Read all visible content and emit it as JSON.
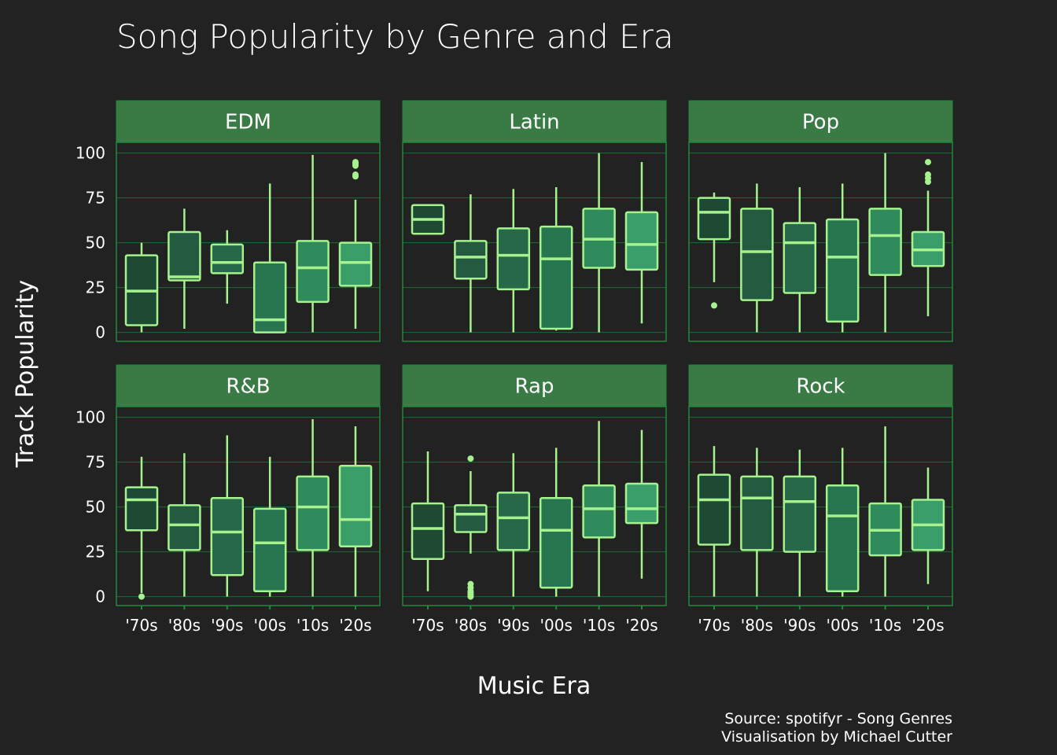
{
  "chart_data": {
    "type": "boxplot",
    "title": "Song Popularity by Genre and Era",
    "xlabel": "Music Era",
    "ylabel": "Track Popularity",
    "caption_line1": "Source: spotifyr - Song Genres",
    "caption_line2": "Visualisation by Michael Cutter",
    "categories": [
      "'70s",
      "'80s",
      "'90s",
      "'00s",
      "'10s",
      "'20s"
    ],
    "y_ticks": [
      0,
      25,
      50,
      75,
      100
    ],
    "ylim": [
      -5,
      106
    ],
    "colors": {
      "background": "#222222",
      "strip": "#3a7a44",
      "frame": "#1f8a3a",
      "grid": "#1f6a33",
      "line": "#a6f28e",
      "fills": [
        "#1e4a33",
        "#245a40",
        "#266848",
        "#28764f",
        "#2f8a5c",
        "#3a9e6b"
      ]
    },
    "panels": [
      {
        "genre": "EDM",
        "boxes": [
          {
            "era": "'70s",
            "min": 0,
            "q1": 4,
            "median": 23,
            "q3": 43,
            "max": 50,
            "outliers": []
          },
          {
            "era": "'80s",
            "min": 2,
            "q1": 29,
            "median": 31,
            "q3": 56,
            "max": 69,
            "outliers": []
          },
          {
            "era": "'90s",
            "min": 16,
            "q1": 33,
            "median": 39,
            "q3": 49,
            "max": 57,
            "outliers": []
          },
          {
            "era": "'00s",
            "min": 0,
            "q1": 0,
            "median": 7,
            "q3": 39,
            "max": 83,
            "outliers": []
          },
          {
            "era": "'10s",
            "min": 0,
            "q1": 17,
            "median": 36,
            "q3": 51,
            "max": 99,
            "outliers": []
          },
          {
            "era": "'20s",
            "min": 2,
            "q1": 26,
            "median": 39,
            "q3": 50,
            "max": 74,
            "outliers": [
              87,
              88,
              93,
              94,
              95
            ]
          }
        ]
      },
      {
        "genre": "Latin",
        "boxes": [
          {
            "era": "'70s",
            "min": 55,
            "q1": 55,
            "median": 63,
            "q3": 71,
            "max": 71,
            "outliers": []
          },
          {
            "era": "'80s",
            "min": 0,
            "q1": 30,
            "median": 42,
            "q3": 51,
            "max": 77,
            "outliers": []
          },
          {
            "era": "'90s",
            "min": 0,
            "q1": 24,
            "median": 43,
            "q3": 58,
            "max": 80,
            "outliers": []
          },
          {
            "era": "'00s",
            "min": 1,
            "q1": 2,
            "median": 41,
            "q3": 59,
            "max": 81,
            "outliers": []
          },
          {
            "era": "'10s",
            "min": 0,
            "q1": 36,
            "median": 52,
            "q3": 69,
            "max": 100,
            "outliers": []
          },
          {
            "era": "'20s",
            "min": 5,
            "q1": 35,
            "median": 49,
            "q3": 67,
            "max": 95,
            "outliers": []
          }
        ]
      },
      {
        "genre": "Pop",
        "boxes": [
          {
            "era": "'70s",
            "min": 28,
            "q1": 52,
            "median": 67,
            "q3": 75,
            "max": 78,
            "outliers": [
              15
            ]
          },
          {
            "era": "'80s",
            "min": 0,
            "q1": 18,
            "median": 45,
            "q3": 69,
            "max": 83,
            "outliers": []
          },
          {
            "era": "'90s",
            "min": 0,
            "q1": 22,
            "median": 50,
            "q3": 61,
            "max": 81,
            "outliers": []
          },
          {
            "era": "'00s",
            "min": 0,
            "q1": 6,
            "median": 42,
            "q3": 63,
            "max": 83,
            "outliers": []
          },
          {
            "era": "'10s",
            "min": 0,
            "q1": 32,
            "median": 54,
            "q3": 69,
            "max": 100,
            "outliers": []
          },
          {
            "era": "'20s",
            "min": 9,
            "q1": 37,
            "median": 46,
            "q3": 56,
            "max": 79,
            "outliers": [
              84,
              86,
              88,
              95
            ]
          }
        ]
      },
      {
        "genre": "R&B",
        "boxes": [
          {
            "era": "'70s",
            "min": 2,
            "q1": 37,
            "median": 54,
            "q3": 61,
            "max": 78,
            "outliers": [
              0
            ]
          },
          {
            "era": "'80s",
            "min": 0,
            "q1": 26,
            "median": 40,
            "q3": 51,
            "max": 80,
            "outliers": []
          },
          {
            "era": "'90s",
            "min": 0,
            "q1": 12,
            "median": 36,
            "q3": 55,
            "max": 90,
            "outliers": []
          },
          {
            "era": "'00s",
            "min": 0,
            "q1": 3,
            "median": 30,
            "q3": 49,
            "max": 78,
            "outliers": []
          },
          {
            "era": "'10s",
            "min": 0,
            "q1": 26,
            "median": 50,
            "q3": 67,
            "max": 99,
            "outliers": []
          },
          {
            "era": "'20s",
            "min": 0,
            "q1": 28,
            "median": 43,
            "q3": 73,
            "max": 95,
            "outliers": []
          }
        ]
      },
      {
        "genre": "Rap",
        "boxes": [
          {
            "era": "'70s",
            "min": 3,
            "q1": 21,
            "median": 38,
            "q3": 52,
            "max": 81,
            "outliers": []
          },
          {
            "era": "'80s",
            "min": 24,
            "q1": 36,
            "median": 46,
            "q3": 51,
            "max": 70,
            "outliers": [
              0,
              1,
              2,
              3,
              5,
              7,
              77
            ]
          },
          {
            "era": "'90s",
            "min": 0,
            "q1": 26,
            "median": 44,
            "q3": 58,
            "max": 80,
            "outliers": []
          },
          {
            "era": "'00s",
            "min": 0,
            "q1": 5,
            "median": 37,
            "q3": 55,
            "max": 83,
            "outliers": []
          },
          {
            "era": "'10s",
            "min": 0,
            "q1": 33,
            "median": 49,
            "q3": 62,
            "max": 98,
            "outliers": []
          },
          {
            "era": "'20s",
            "min": 10,
            "q1": 41,
            "median": 49,
            "q3": 63,
            "max": 93,
            "outliers": []
          }
        ]
      },
      {
        "genre": "Rock",
        "boxes": [
          {
            "era": "'70s",
            "min": 0,
            "q1": 29,
            "median": 54,
            "q3": 68,
            "max": 84,
            "outliers": []
          },
          {
            "era": "'80s",
            "min": 0,
            "q1": 26,
            "median": 55,
            "q3": 67,
            "max": 83,
            "outliers": []
          },
          {
            "era": "'90s",
            "min": 0,
            "q1": 25,
            "median": 53,
            "q3": 67,
            "max": 82,
            "outliers": []
          },
          {
            "era": "'00s",
            "min": 0,
            "q1": 3,
            "median": 45,
            "q3": 62,
            "max": 83,
            "outliers": []
          },
          {
            "era": "'10s",
            "min": 0,
            "q1": 23,
            "median": 37,
            "q3": 52,
            "max": 95,
            "outliers": []
          },
          {
            "era": "'20s",
            "min": 7,
            "q1": 26,
            "median": 40,
            "q3": 54,
            "max": 72,
            "outliers": []
          }
        ]
      }
    ]
  }
}
